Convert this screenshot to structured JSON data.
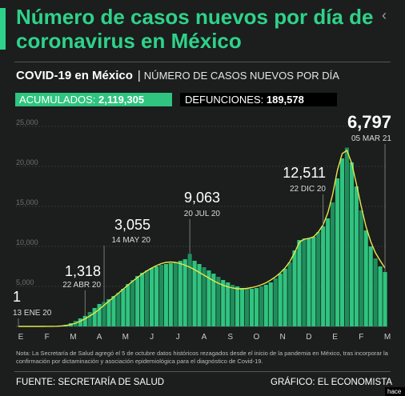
{
  "header": {
    "title": "Número de casos nuevos por día de coronavirus en México",
    "subtitle_bold": "COVID-19 en México",
    "subtitle_sep": "|",
    "subtitle_desc": "NÚMERO DE CASOS NUEVOS POR DÍA",
    "back_icon": "‹"
  },
  "stats": {
    "acumulados_label": "ACUMULADOS:",
    "acumulados_value": "2,119,305",
    "defunciones_label": "DEFUNCIONES:",
    "defunciones_value": "189,578"
  },
  "chart_data": {
    "type": "bar",
    "title": "",
    "xlabel": "",
    "ylabel": "",
    "ylim": [
      0,
      25000
    ],
    "yticks": [
      "5,000",
      "10,000",
      "15,000",
      "20,000",
      "25,000"
    ],
    "x_tick_labels": [
      "E",
      "F",
      "M",
      "A",
      "M",
      "J",
      "J",
      "A",
      "S",
      "O",
      "N",
      "D",
      "E",
      "F",
      "M"
    ],
    "grid": true,
    "colors": {
      "bars": "#2fc47f",
      "trend": "#e8e84a",
      "grid": "#4a4d4c",
      "leader": "#8a8f8c"
    },
    "series": [
      {
        "values": [
          0,
          0,
          0,
          0,
          0,
          5,
          10,
          30,
          50,
          100,
          200,
          400,
          700,
          1000,
          1318,
          1800,
          2300,
          2800,
          3055,
          3400,
          3800,
          4200,
          4700,
          5300,
          5800,
          6300,
          6700,
          7000,
          7300,
          7500,
          7700,
          7800,
          7900,
          8000,
          8200,
          8400,
          9063,
          8200,
          7800,
          7400,
          7000,
          6600,
          6200,
          5800,
          5500,
          5200,
          5000,
          4800,
          4700,
          4700,
          4800,
          5000,
          5200,
          5500,
          6000,
          6600,
          7200,
          8000,
          9500,
          10800,
          11000,
          11000,
          11200,
          11800,
          12511,
          13500,
          15500,
          18500,
          21000,
          22339,
          20500,
          17500,
          14500,
          12000,
          10000,
          8500,
          7500,
          6797
        ]
      }
    ],
    "trend": [
      0,
      0,
      0,
      0,
      0,
      2,
      5,
      12,
      25,
      60,
      120,
      230,
      400,
      650,
      950,
      1300,
      1700,
      2150,
      2650,
      3150,
      3650,
      4150,
      4650,
      5150,
      5650,
      6100,
      6550,
      6950,
      7300,
      7600,
      7850,
      8000,
      8050,
      8000,
      7850,
      7650,
      7400,
      7100,
      6750,
      6400,
      6050,
      5700,
      5400,
      5150,
      4950,
      4800,
      4700,
      4700,
      4750,
      4850,
      5000,
      5200,
      5450,
      5800,
      6200,
      6700,
      7300,
      8100,
      9200,
      10500,
      10900,
      11000,
      11200,
      11800,
      12700,
      14200,
      16500,
      19500,
      21600,
      22000,
      20400,
      17800,
      15000,
      12500,
      10600,
      9200,
      8200,
      7300
    ],
    "annotations": [
      {
        "value": "1",
        "date": "13 ENE 20"
      },
      {
        "value": "1,318",
        "date": "22 ABR 20"
      },
      {
        "value": "3,055",
        "date": "14 MAY 20"
      },
      {
        "value": "9,063",
        "date": "20 JUL 20"
      },
      {
        "value": "12,511",
        "date": "22 DIC 20"
      },
      {
        "value": "6,797",
        "date": "05 MAR 21"
      }
    ]
  },
  "footer": {
    "note": "Nota: La Secretaría de Salud agregó el 5 de octubre datos históricos rezagados desde el inicio de la pandemia en México, tras incorporar la confirmación por dictaminación y asociación epidemiológica para el diagnóstico de Covid-19.",
    "source": "FUENTE: SECRETARÍA DE SALUD",
    "credit": "GRÁFICO: EL ECONOMISTA",
    "corner": "hace"
  }
}
